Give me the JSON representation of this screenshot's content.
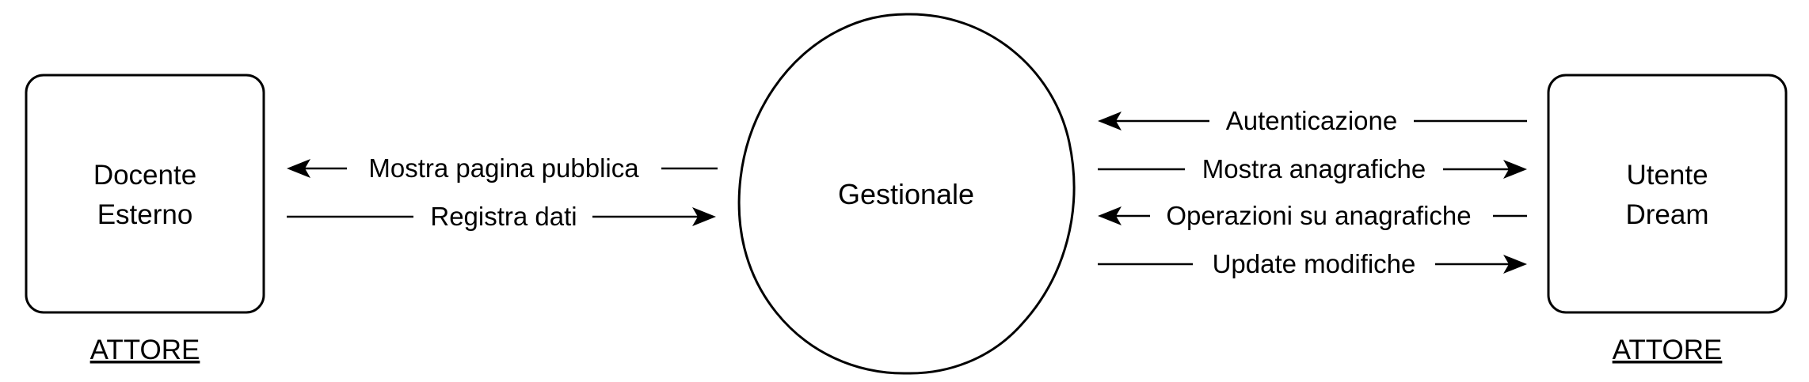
{
  "left_actor": {
    "name_line1": "Docente",
    "name_line2": "Esterno",
    "role": "ATTORE"
  },
  "right_actor": {
    "name_line1": "Utente",
    "name_line2": "Dream",
    "role": "ATTORE"
  },
  "system": {
    "name": "Gestionale"
  },
  "left_flows": [
    {
      "label": "Mostra pagina pubblica",
      "direction": "to-left-actor"
    },
    {
      "label": "Registra dati",
      "direction": "to-system"
    }
  ],
  "right_flows": [
    {
      "label": "Autenticazione",
      "direction": "to-system"
    },
    {
      "label": "Mostra anagrafiche",
      "direction": "to-right-actor"
    },
    {
      "label": "Operazioni su anagrafiche",
      "direction": "to-system"
    },
    {
      "label": "Update modifiche",
      "direction": "to-right-actor"
    }
  ]
}
